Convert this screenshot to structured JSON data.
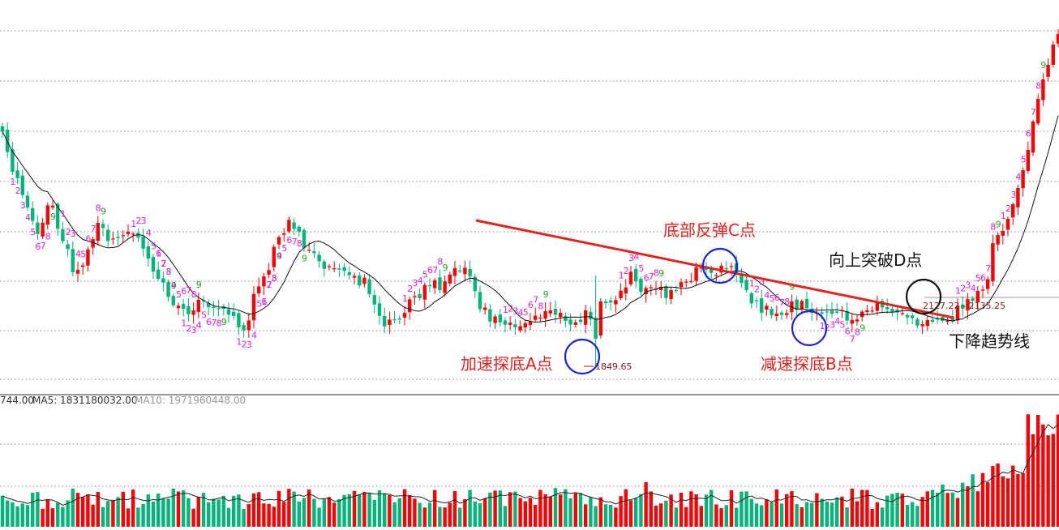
{
  "colors": {
    "up": "#ff0000",
    "down": "#00b57a",
    "td_up": "#e020e0",
    "td_down": "#1fa51f",
    "trendline": "#e8211d",
    "circle_blue": "#1a22d6",
    "circle_black": "#111111",
    "grid": "#888888"
  },
  "chart_data": {
    "type": "candlestick",
    "grid": true,
    "low_point": {
      "label": "1849.65",
      "bar": 118
    },
    "range_readout": "2127.22 - 2135.25",
    "volume_indicator": {
      "value_prefix": "744.00",
      "ma5_label": "MA5: 1831180032.00",
      "ma10_label": "MA10: 1971960448.00"
    },
    "annotations": [
      {
        "text": "加速探底A点",
        "bar": 118,
        "color": "red"
      },
      {
        "text": "减速探底B点",
        "bar": 166,
        "color": "red"
      },
      {
        "text": "底部反弹C点",
        "bar": 147,
        "color": "red"
      },
      {
        "text": "向上突破D点",
        "bar": 188,
        "color": "black"
      },
      {
        "text": "下降趋势线",
        "color": "black"
      }
    ],
    "trendline": {
      "label": "下降趋势线",
      "from_bar": 97,
      "to_bar": 196
    },
    "circles": [
      {
        "bar": 118,
        "color": "blue"
      },
      {
        "bar": 166,
        "color": "blue"
      },
      {
        "bar": 147,
        "color": "blue"
      },
      {
        "bar": 189,
        "color": "black"
      }
    ]
  }
}
